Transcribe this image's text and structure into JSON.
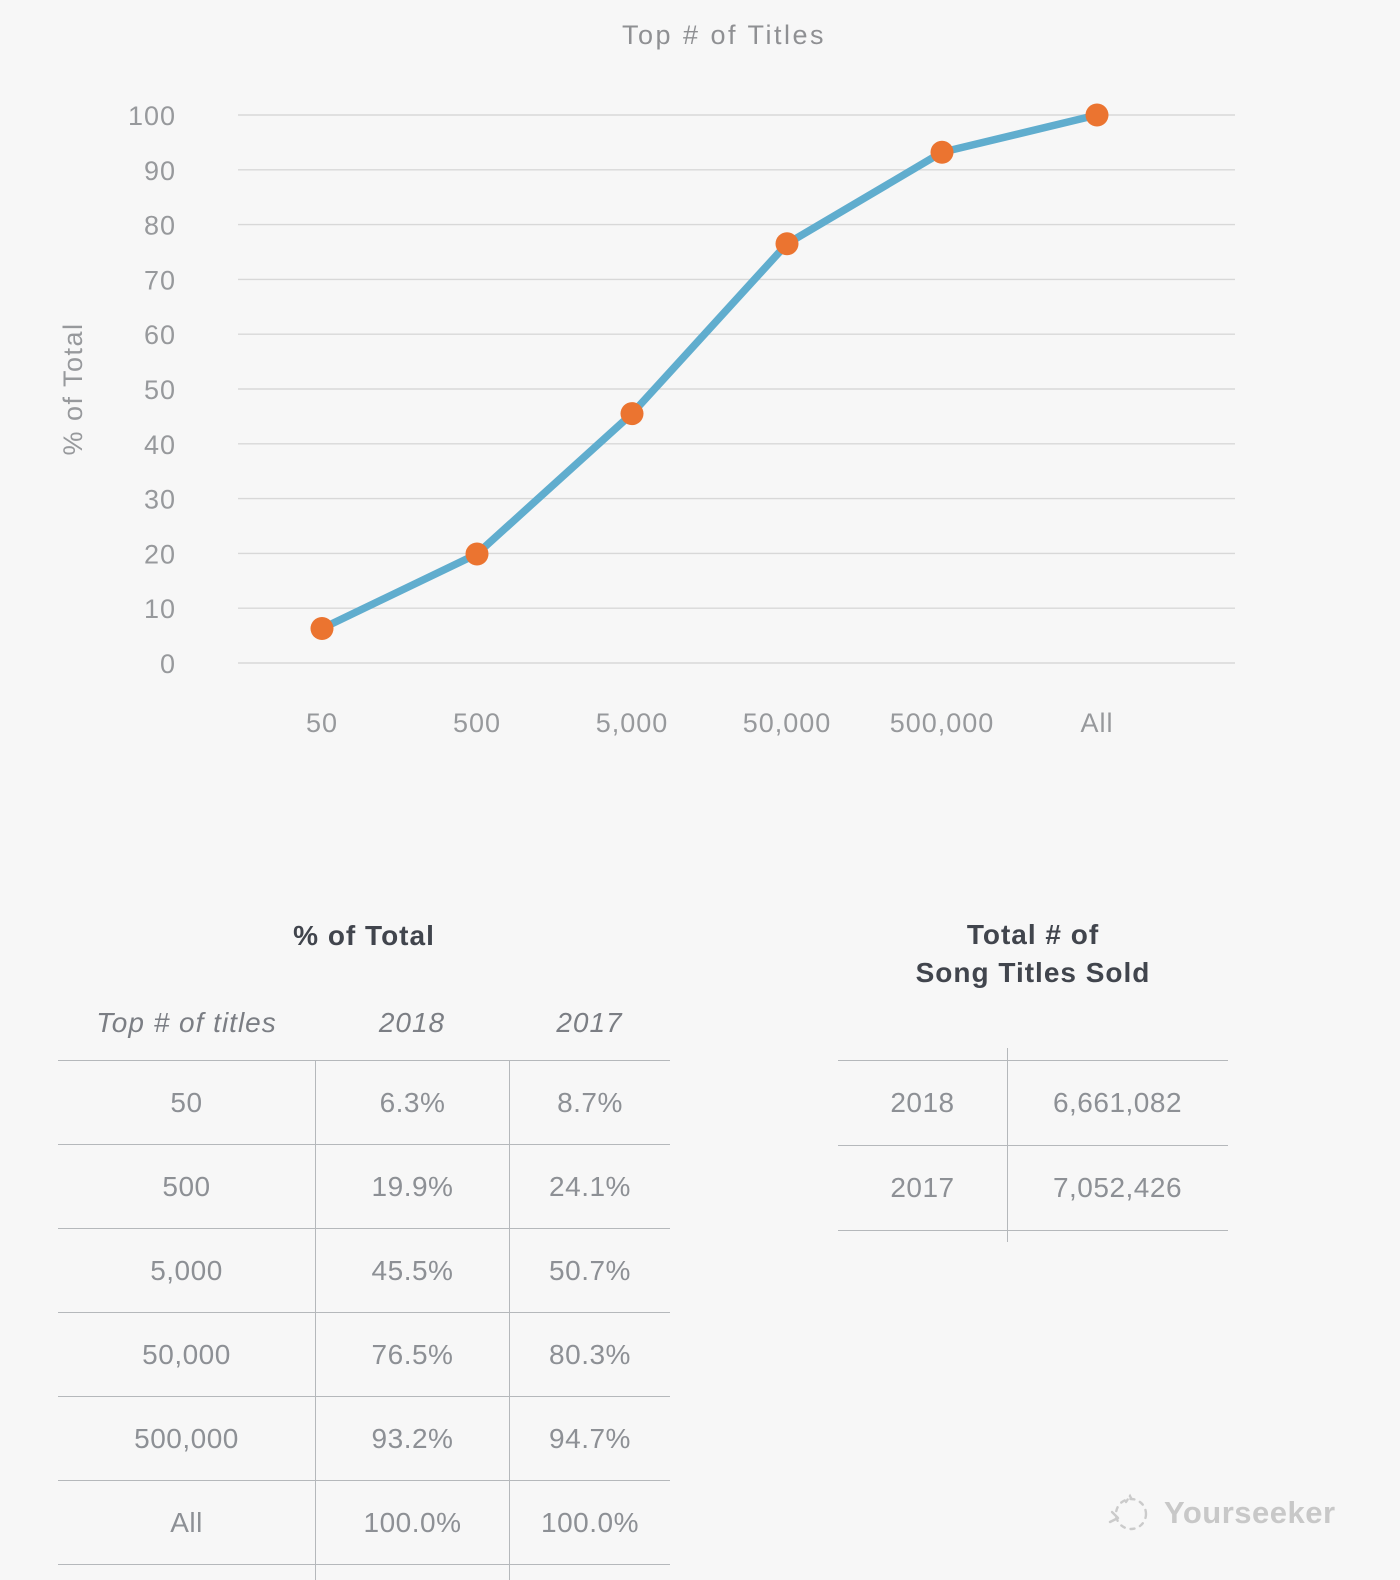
{
  "title": "Top # of Titles",
  "chart_data": {
    "type": "line",
    "title": "Top # of Titles",
    "xlabel": "",
    "ylabel": "% of Total",
    "categories": [
      "50",
      "500",
      "5,000",
      "50,000",
      "500,000",
      "All"
    ],
    "series": [
      {
        "name": "2018",
        "values": [
          6.3,
          19.9,
          45.5,
          76.5,
          93.2,
          100.0
        ]
      }
    ],
    "ylim": [
      0,
      100
    ],
    "ytick_step": 10,
    "grid": true,
    "legend": "none",
    "line_color": "#60ADCE",
    "marker_color": "#EB7430",
    "gridline_color": "#d8d8d8",
    "axis_text_color": "#97999c"
  },
  "tables": {
    "left": {
      "title": "% of Total",
      "columns": [
        "Top # of titles",
        "2018",
        "2017"
      ],
      "rows": [
        [
          "50",
          "6.3%",
          "8.7%"
        ],
        [
          "500",
          "19.9%",
          "24.1%"
        ],
        [
          "5,000",
          "45.5%",
          "50.7%"
        ],
        [
          "50,000",
          "76.5%",
          "80.3%"
        ],
        [
          "500,000",
          "93.2%",
          "94.7%"
        ],
        [
          "All",
          "100.0%",
          "100.0%"
        ]
      ]
    },
    "right": {
      "title_line1": "Total # of",
      "title_line2": "Song Titles Sold",
      "rows": [
        [
          "2018",
          "6,661,082"
        ],
        [
          "2017",
          "7,052,426"
        ]
      ]
    }
  },
  "watermark": {
    "text": "Yourseeker"
  }
}
